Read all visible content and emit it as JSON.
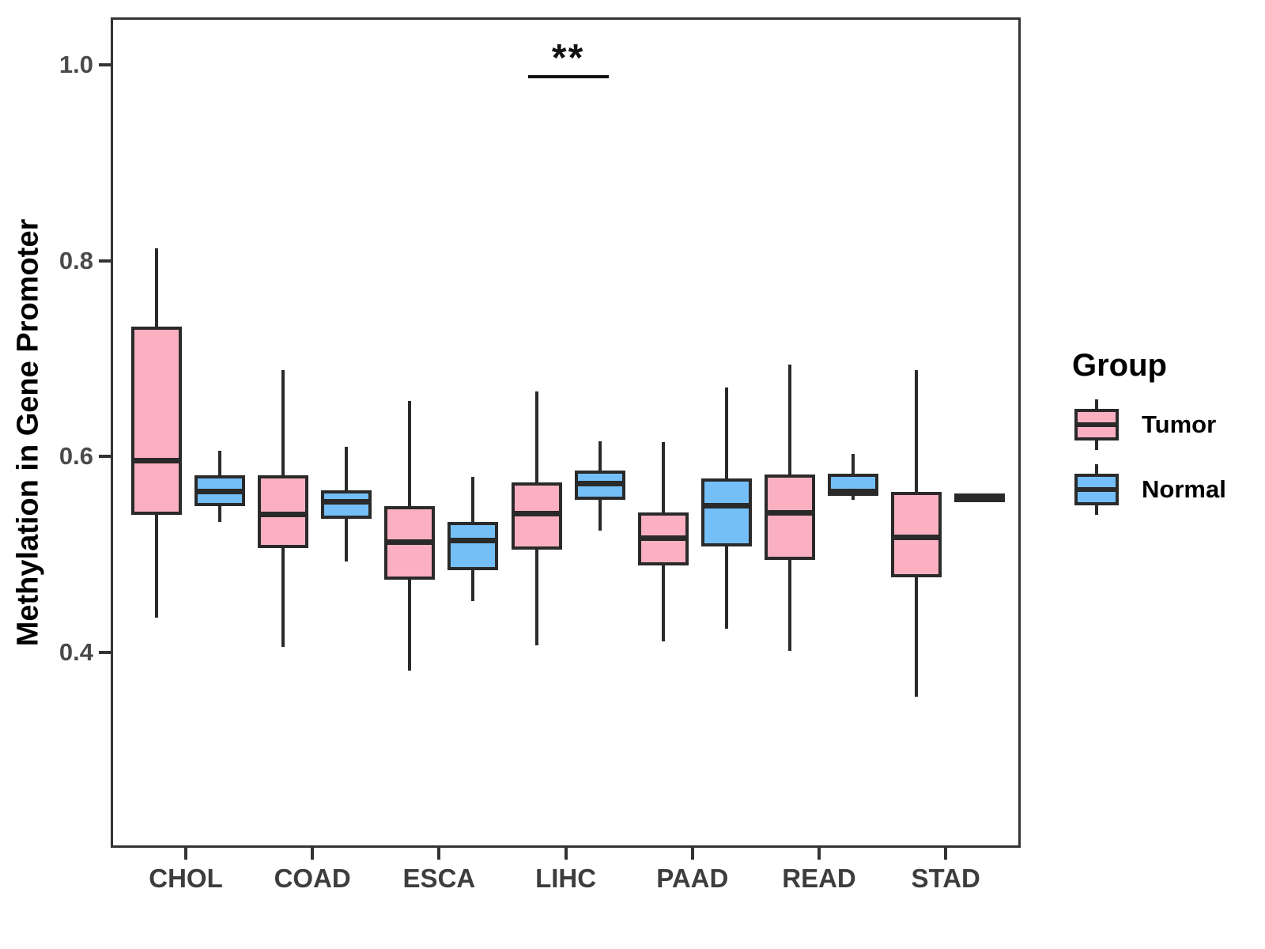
{
  "chart_data": {
    "type": "grouped_boxplot",
    "title": "",
    "xlabel": "",
    "ylabel": "Methylation in Gene Promoter",
    "categories": [
      "CHOL",
      "COAD",
      "ESCA",
      "LIHC",
      "PAAD",
      "READ",
      "STAD"
    ],
    "y_ticks": [
      {
        "label": "1.0",
        "value": 1.0
      },
      {
        "label": "0.8",
        "value": 0.8
      },
      {
        "label": "0.6",
        "value": 0.6
      },
      {
        "label": "0.4",
        "value": 0.4
      }
    ],
    "ylim": [
      0.2,
      1.05
    ],
    "grid": false,
    "legend": {
      "title": "Group",
      "position": "right",
      "entries": [
        {
          "label": "Tumor",
          "color": "#FBB0C1"
        },
        {
          "label": "Normal",
          "color": "#74BFF7"
        }
      ]
    },
    "annotation": {
      "text": "**",
      "category": "LIHC",
      "bar_y": 0.992,
      "note": "significance bar spanning LIHC Tumor to LIHC Normal"
    },
    "series": [
      {
        "name": "Tumor",
        "color": "#FBB0C1",
        "boxes": [
          {
            "category": "CHOL",
            "min": 0.438,
            "q1": 0.543,
            "median": 0.598,
            "q3": 0.735,
            "max": 0.815
          },
          {
            "category": "COAD",
            "min": 0.408,
            "q1": 0.509,
            "median": 0.543,
            "q3": 0.583,
            "max": 0.691
          },
          {
            "category": "ESCA",
            "min": 0.384,
            "q1": 0.477,
            "median": 0.515,
            "q3": 0.552,
            "max": 0.659
          },
          {
            "category": "LIHC",
            "min": 0.41,
            "q1": 0.507,
            "median": 0.544,
            "q3": 0.576,
            "max": 0.669
          },
          {
            "category": "PAAD",
            "min": 0.414,
            "q1": 0.491,
            "median": 0.519,
            "q3": 0.545,
            "max": 0.617
          },
          {
            "category": "READ",
            "min": 0.404,
            "q1": 0.497,
            "median": 0.545,
            "q3": 0.584,
            "max": 0.696
          },
          {
            "category": "STAD",
            "min": 0.357,
            "q1": 0.479,
            "median": 0.52,
            "q3": 0.566,
            "max": 0.691
          }
        ]
      },
      {
        "name": "Normal",
        "color": "#74BFF7",
        "boxes": [
          {
            "category": "CHOL",
            "min": 0.536,
            "q1": 0.552,
            "median": 0.567,
            "q3": 0.583,
            "max": 0.608
          },
          {
            "category": "COAD",
            "min": 0.495,
            "q1": 0.539,
            "median": 0.556,
            "q3": 0.568,
            "max": 0.612
          },
          {
            "category": "ESCA",
            "min": 0.455,
            "q1": 0.486,
            "median": 0.517,
            "q3": 0.536,
            "max": 0.582
          },
          {
            "category": "LIHC",
            "min": 0.527,
            "q1": 0.558,
            "median": 0.575,
            "q3": 0.588,
            "max": 0.618
          },
          {
            "category": "PAAD",
            "min": 0.427,
            "q1": 0.511,
            "median": 0.552,
            "q3": 0.58,
            "max": 0.673
          },
          {
            "category": "READ",
            "min": 0.558,
            "q1": 0.562,
            "median": 0.567,
            "q3": 0.585,
            "max": 0.605
          },
          {
            "category": "STAD",
            "min": 0.5605,
            "q1": 0.5615,
            "median": 0.562,
            "q3": 0.5625,
            "max": 0.5635
          }
        ]
      }
    ],
    "style": {
      "box_border_color": "#2a2a2a",
      "panel_border_color": "#333333",
      "tick_label_color": "#4a4a4a",
      "category_label_color": "#3d3d3d",
      "axis_title_color": "#000000",
      "background": "#ffffff"
    }
  }
}
